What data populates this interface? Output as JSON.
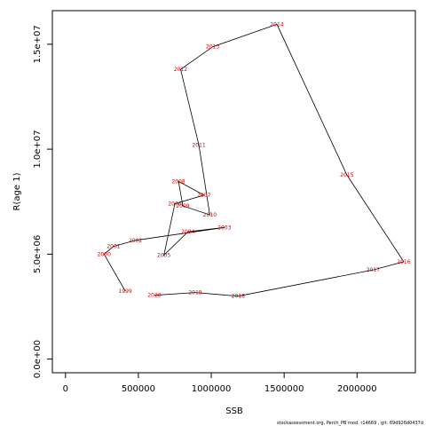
{
  "chart_data": {
    "type": "line",
    "xlabel": "SSB",
    "ylabel": "R(age 1)",
    "xlim": [
      -90000,
      2400000
    ],
    "ylim": [
      -650000,
      16600000
    ],
    "x_ticks": [
      0,
      500000,
      1000000,
      1500000,
      2000000
    ],
    "x_tick_labels": [
      "0",
      "500000",
      "1000000",
      "1500000",
      "2000000"
    ],
    "y_ticks": [
      0,
      5000000,
      10000000,
      15000000
    ],
    "y_tick_labels": [
      "0.0e+00",
      "5.0e+06",
      "1.0e+07",
      "1.5e+07"
    ],
    "line_color": "#000000",
    "label_color": "#e00000",
    "points": [
      {
        "label": "1999",
        "x": 410000,
        "y": 3250000
      },
      {
        "label": "2000",
        "x": 265000,
        "y": 5000000
      },
      {
        "label": "2001",
        "x": 330000,
        "y": 5370000
      },
      {
        "label": "2002",
        "x": 480000,
        "y": 5660000
      },
      {
        "label": "2003",
        "x": 1090000,
        "y": 6270000
      },
      {
        "label": "2004",
        "x": 840000,
        "y": 6070000
      },
      {
        "label": "2005",
        "x": 675000,
        "y": 4950000
      },
      {
        "label": "2006",
        "x": 750000,
        "y": 7400000
      },
      {
        "label": "2007",
        "x": 950000,
        "y": 7810000
      },
      {
        "label": "2008",
        "x": 775000,
        "y": 8470000
      },
      {
        "label": "2009",
        "x": 805000,
        "y": 7300000
      },
      {
        "label": "2010",
        "x": 990000,
        "y": 6870000
      },
      {
        "label": "2011",
        "x": 915000,
        "y": 10200000
      },
      {
        "label": "2012",
        "x": 790000,
        "y": 13800000
      },
      {
        "label": "2013",
        "x": 1010000,
        "y": 14880000
      },
      {
        "label": "2014",
        "x": 1450000,
        "y": 15950000
      },
      {
        "label": "2015",
        "x": 1930000,
        "y": 8780000
      },
      {
        "label": "2016",
        "x": 2320000,
        "y": 4640000
      },
      {
        "label": "2017",
        "x": 2110000,
        "y": 4250000
      },
      {
        "label": "2018",
        "x": 1185000,
        "y": 3000000
      },
      {
        "label": "2019",
        "x": 890000,
        "y": 3170000
      },
      {
        "label": "2020",
        "x": 610000,
        "y": 3040000
      }
    ]
  },
  "footer_text": "stockassessment.org, Perch_PB mod. r14669 , git: 69d926d0437d"
}
